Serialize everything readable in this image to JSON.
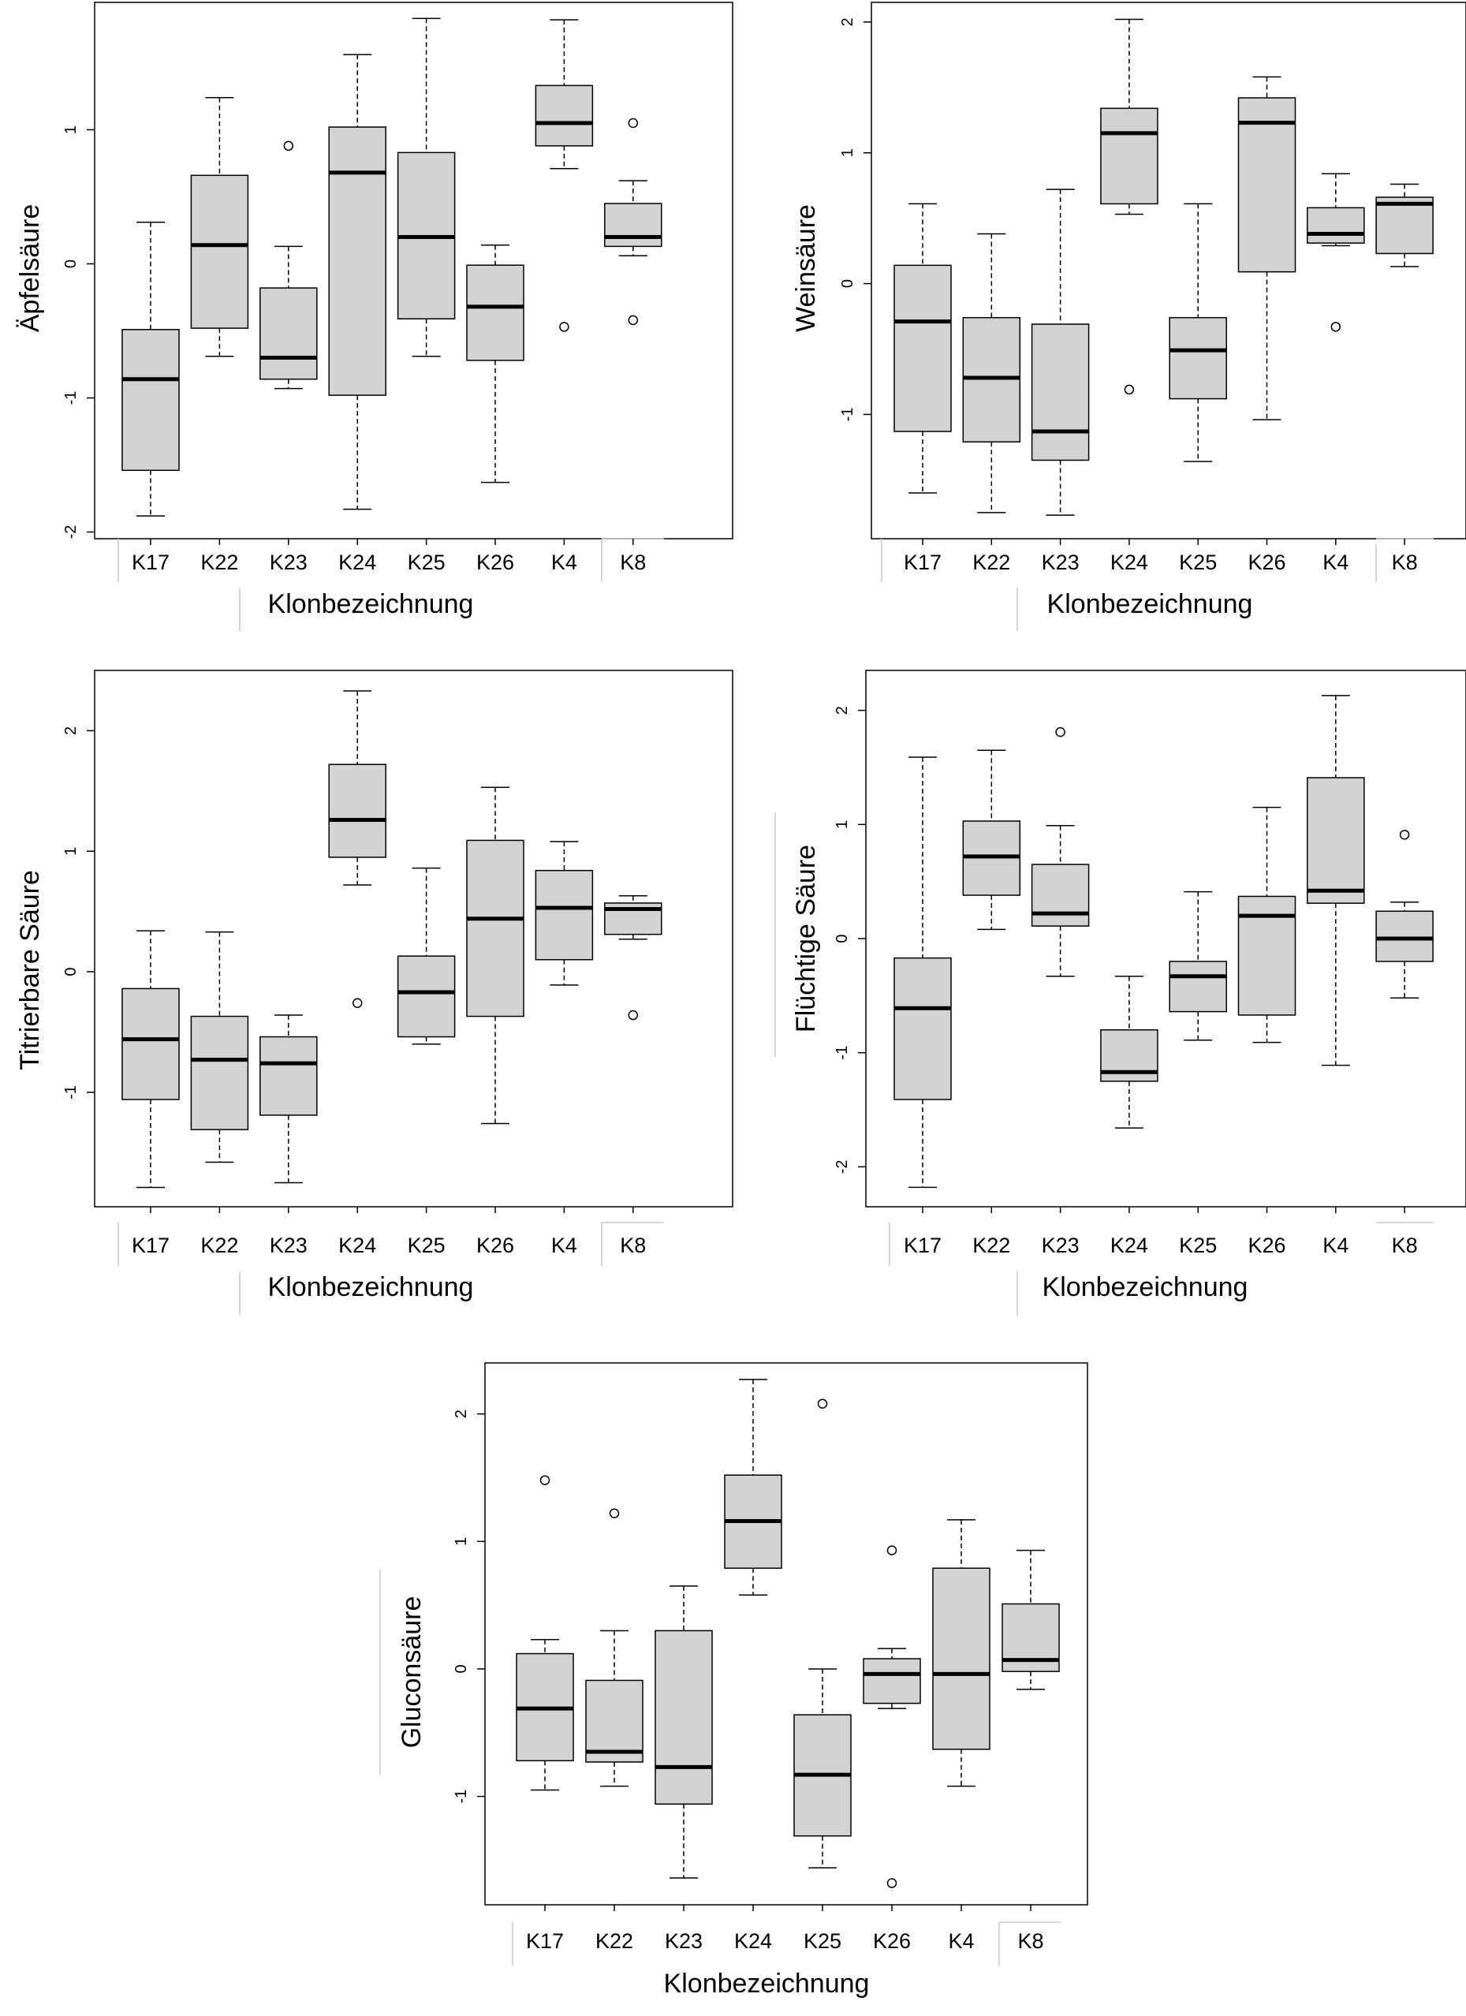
{
  "chart_data": [
    {
      "type": "boxplot",
      "title": "",
      "xlabel": "Klonbezeichnung",
      "ylabel": "Äpfelsäure",
      "ylim": [
        -2.05,
        1.95
      ],
      "yticks": [
        -2,
        -1,
        0,
        1
      ],
      "ytick_labels": [
        "-2",
        "-1",
        "0",
        "1"
      ],
      "categories": [
        "K17",
        "K22",
        "K23",
        "K24",
        "K25",
        "K26",
        "K4",
        "K8"
      ],
      "boxes": [
        {
          "min": -1.88,
          "q1": -1.54,
          "median": -0.86,
          "q3": -0.49,
          "max": 0.31,
          "outliers": []
        },
        {
          "min": -0.69,
          "q1": -0.48,
          "median": 0.14,
          "q3": 0.66,
          "max": 1.24,
          "outliers": []
        },
        {
          "min": -0.93,
          "q1": -0.86,
          "median": -0.7,
          "q3": -0.18,
          "max": 0.13,
          "outliers": [
            0.88
          ]
        },
        {
          "min": -1.83,
          "q1": -0.98,
          "median": 0.68,
          "q3": 1.02,
          "max": 1.56,
          "outliers": []
        },
        {
          "min": -0.69,
          "q1": -0.41,
          "median": 0.2,
          "q3": 0.83,
          "max": 1.83,
          "outliers": []
        },
        {
          "min": -1.63,
          "q1": -0.72,
          "median": -0.32,
          "q3": -0.01,
          "max": 0.14,
          "outliers": []
        },
        {
          "min": 0.71,
          "q1": 0.88,
          "median": 1.05,
          "q3": 1.33,
          "max": 1.82,
          "outliers": [
            -0.47
          ]
        },
        {
          "min": 0.06,
          "q1": 0.13,
          "median": 0.2,
          "q3": 0.45,
          "max": 0.62,
          "outliers": [
            1.05,
            -0.42
          ]
        }
      ]
    },
    {
      "type": "boxplot",
      "title": "",
      "xlabel": "Klonbezeichnung",
      "ylabel": "Weinsäure",
      "ylim": [
        -1.95,
        2.15
      ],
      "yticks": [
        -1,
        0,
        1,
        2
      ],
      "ytick_labels": [
        "-1",
        "0",
        "1",
        "2"
      ],
      "categories": [
        "K17",
        "K22",
        "K23",
        "K24",
        "K25",
        "K26",
        "K4",
        "K8"
      ],
      "boxes": [
        {
          "min": -1.6,
          "q1": -1.13,
          "median": -0.29,
          "q3": 0.14,
          "max": 0.61,
          "outliers": []
        },
        {
          "min": -1.75,
          "q1": -1.21,
          "median": -0.72,
          "q3": -0.26,
          "max": 0.38,
          "outliers": []
        },
        {
          "min": -1.77,
          "q1": -1.35,
          "median": -1.13,
          "q3": -0.31,
          "max": 0.72,
          "outliers": []
        },
        {
          "min": 0.53,
          "q1": 0.61,
          "median": 1.15,
          "q3": 1.34,
          "max": 2.02,
          "outliers": [
            -0.81
          ]
        },
        {
          "min": -1.36,
          "q1": -0.88,
          "median": -0.51,
          "q3": -0.26,
          "max": 0.61,
          "outliers": []
        },
        {
          "min": -1.04,
          "q1": 0.09,
          "median": 1.23,
          "q3": 1.42,
          "max": 1.58,
          "outliers": []
        },
        {
          "min": 0.29,
          "q1": 0.31,
          "median": 0.38,
          "q3": 0.58,
          "max": 0.84,
          "outliers": [
            -0.33
          ]
        },
        {
          "min": 0.13,
          "q1": 0.23,
          "median": 0.61,
          "q3": 0.66,
          "max": 0.76,
          "outliers": []
        }
      ]
    },
    {
      "type": "boxplot",
      "title": "",
      "xlabel": "Klonbezeichnung",
      "ylabel": "Titrierbare Säure",
      "ylim": [
        -1.95,
        2.5
      ],
      "yticks": [
        -1,
        0,
        1,
        2
      ],
      "ytick_labels": [
        "-1",
        "0",
        "1",
        "2"
      ],
      "categories": [
        "K17",
        "K22",
        "K23",
        "K24",
        "K25",
        "K26",
        "K4",
        "K8"
      ],
      "boxes": [
        {
          "min": -1.79,
          "q1": -1.06,
          "median": -0.56,
          "q3": -0.14,
          "max": 0.34,
          "outliers": []
        },
        {
          "min": -1.58,
          "q1": -1.31,
          "median": -0.73,
          "q3": -0.37,
          "max": 0.33,
          "outliers": []
        },
        {
          "min": -1.75,
          "q1": -1.19,
          "median": -0.76,
          "q3": -0.54,
          "max": -0.36,
          "outliers": []
        },
        {
          "min": 0.72,
          "q1": 0.95,
          "median": 1.26,
          "q3": 1.72,
          "max": 2.33,
          "outliers": [
            -0.26
          ]
        },
        {
          "min": -0.6,
          "q1": -0.54,
          "median": -0.17,
          "q3": 0.13,
          "max": 0.86,
          "outliers": []
        },
        {
          "min": -1.26,
          "q1": -0.37,
          "median": 0.44,
          "q3": 1.09,
          "max": 1.53,
          "outliers": []
        },
        {
          "min": -0.11,
          "q1": 0.1,
          "median": 0.53,
          "q3": 0.84,
          "max": 1.08,
          "outliers": []
        },
        {
          "min": 0.27,
          "q1": 0.31,
          "median": 0.52,
          "q3": 0.57,
          "max": 0.63,
          "outliers": [
            -0.36
          ]
        }
      ]
    },
    {
      "type": "boxplot",
      "title": "",
      "xlabel": "Klonbezeichnung",
      "ylabel": "Flüchtige Säure",
      "ylim": [
        -2.35,
        2.35
      ],
      "yticks": [
        -2,
        -1,
        0,
        1,
        2
      ],
      "ytick_labels": [
        "-2",
        "-1",
        "0",
        "1",
        "2"
      ],
      "categories": [
        "K17",
        "K22",
        "K23",
        "K24",
        "K25",
        "K26",
        "K4",
        "K8"
      ],
      "boxes": [
        {
          "min": -2.18,
          "q1": -1.41,
          "median": -0.61,
          "q3": -0.17,
          "max": 1.59,
          "outliers": []
        },
        {
          "min": 0.08,
          "q1": 0.38,
          "median": 0.72,
          "q3": 1.03,
          "max": 1.65,
          "outliers": []
        },
        {
          "min": -0.33,
          "q1": 0.11,
          "median": 0.22,
          "q3": 0.65,
          "max": 0.99,
          "outliers": [
            1.81
          ]
        },
        {
          "min": -1.66,
          "q1": -1.25,
          "median": -1.17,
          "q3": -0.8,
          "max": -0.33,
          "outliers": []
        },
        {
          "min": -0.89,
          "q1": -0.64,
          "median": -0.33,
          "q3": -0.2,
          "max": 0.41,
          "outliers": []
        },
        {
          "min": -0.91,
          "q1": -0.67,
          "median": 0.2,
          "q3": 0.37,
          "max": 1.15,
          "outliers": []
        },
        {
          "min": -1.11,
          "q1": 0.31,
          "median": 0.42,
          "q3": 1.41,
          "max": 2.13,
          "outliers": []
        },
        {
          "min": -0.52,
          "q1": -0.2,
          "median": 0.0,
          "q3": 0.24,
          "max": 0.32,
          "outliers": [
            0.91
          ]
        }
      ]
    },
    {
      "type": "boxplot",
      "title": "",
      "xlabel": "Klonbezeichnung",
      "ylabel": "Gluconsäure",
      "ylim": [
        -1.85,
        2.4
      ],
      "yticks": [
        -1,
        0,
        1,
        2
      ],
      "ytick_labels": [
        "-1",
        "0",
        "1",
        "2"
      ],
      "categories": [
        "K17",
        "K22",
        "K23",
        "K24",
        "K25",
        "K26",
        "K4",
        "K8"
      ],
      "boxes": [
        {
          "min": -0.95,
          "q1": -0.72,
          "median": -0.31,
          "q3": 0.12,
          "max": 0.23,
          "outliers": [
            1.48
          ]
        },
        {
          "min": -0.92,
          "q1": -0.73,
          "median": -0.65,
          "q3": -0.09,
          "max": 0.3,
          "outliers": [
            1.22
          ]
        },
        {
          "min": -1.64,
          "q1": -1.06,
          "median": -0.77,
          "q3": 0.3,
          "max": 0.65,
          "outliers": []
        },
        {
          "min": 0.58,
          "q1": 0.79,
          "median": 1.16,
          "q3": 1.52,
          "max": 2.27,
          "outliers": []
        },
        {
          "min": -1.56,
          "q1": -1.31,
          "median": -0.83,
          "q3": -0.36,
          "max": 0.0,
          "outliers": [
            2.08
          ]
        },
        {
          "min": -0.31,
          "q1": -0.27,
          "median": -0.04,
          "q3": 0.08,
          "max": 0.16,
          "outliers": [
            0.93,
            -1.68
          ]
        },
        {
          "min": -0.92,
          "q1": -0.63,
          "median": -0.04,
          "q3": 0.79,
          "max": 1.17,
          "outliers": []
        },
        {
          "min": -0.16,
          "q1": -0.02,
          "median": 0.07,
          "q3": 0.51,
          "max": 0.93,
          "outliers": []
        }
      ]
    }
  ]
}
